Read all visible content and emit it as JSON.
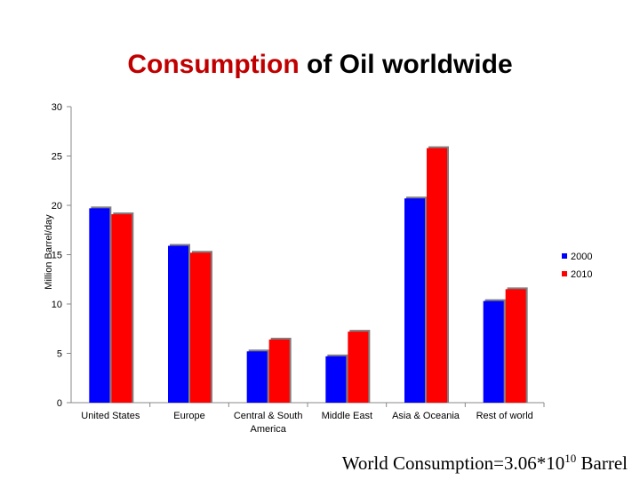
{
  "title": {
    "part1": "Consumption",
    "part2": " of Oil worldwide",
    "part1_color": "#c00000",
    "part2_color": "#000000"
  },
  "footer": {
    "prefix": "World Consumption=3.06*10",
    "exponent": "10",
    "suffix": " Barrel"
  },
  "chart_data": {
    "type": "bar",
    "title": "Consumption of Oil worldwide",
    "ylabel": "Million Barrel/day",
    "xlabel": "",
    "ylim": [
      0,
      30
    ],
    "yticks": [
      0,
      5,
      10,
      15,
      20,
      25,
      30
    ],
    "grid": false,
    "legend_position": "right",
    "categories": [
      "United States",
      "Europe",
      "Central & South America",
      "Middle East",
      "Asia & Oceania",
      "Rest of world"
    ],
    "category_label_lines": [
      [
        "United States"
      ],
      [
        "Europe"
      ],
      [
        "Central & South",
        "America"
      ],
      [
        "Middle East"
      ],
      [
        "Asia & Oceania"
      ],
      [
        "Rest of world"
      ]
    ],
    "series": [
      {
        "name": "2000",
        "color": "#0000ff",
        "values": [
          19.7,
          15.9,
          5.2,
          4.7,
          20.7,
          10.3
        ]
      },
      {
        "name": "2010",
        "color": "#ff0000",
        "values": [
          19.1,
          15.2,
          6.4,
          7.2,
          25.8,
          11.5
        ]
      }
    ]
  }
}
